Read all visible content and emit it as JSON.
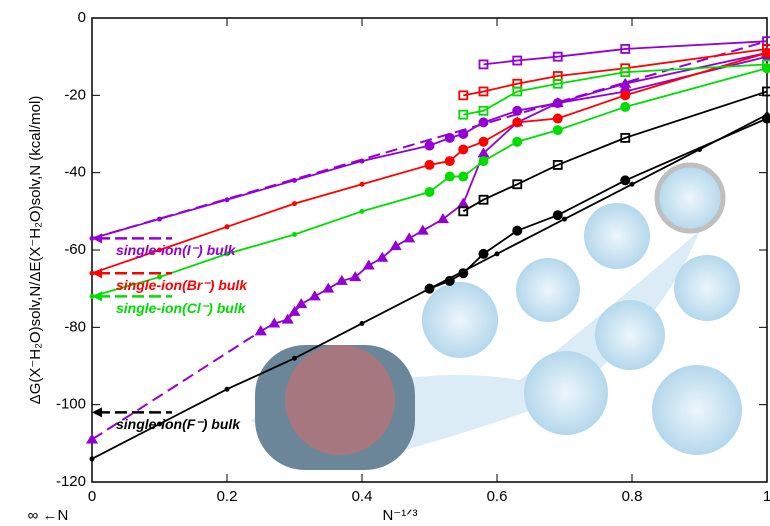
{
  "chart_data": {
    "type": "line",
    "xlabel": "N⁻¹ᐟ³",
    "ylabel": "ΔG(X⁻H₂O)solv,N/ΔE(X⁻H₂O)solv,N  (kcal/mol)",
    "x_note": "∞ ←N",
    "xlim": [
      0,
      1
    ],
    "ylim": [
      -120,
      0
    ],
    "xticks": [
      0,
      0.2,
      0.4,
      0.6,
      0.8,
      1
    ],
    "yticks": [
      -120,
      -100,
      -80,
      -60,
      -40,
      -20,
      0
    ],
    "series": [
      {
        "color": "#9400d3",
        "marker": "none",
        "dash": true,
        "x": [
          0,
          1
        ],
        "values": [
          -57,
          -6
        ]
      },
      {
        "color": "#9400d3",
        "marker": "square",
        "dash": false,
        "x": [
          0.58,
          0.63,
          0.69,
          0.79,
          1
        ],
        "values": [
          -12,
          -11,
          -10,
          -8,
          -6
        ]
      },
      {
        "color": "#9400d3",
        "marker": "circle",
        "dash": false,
        "x": [
          0.5,
          0.53,
          0.55,
          0.58,
          0.63,
          0.69,
          0.79,
          1
        ],
        "values": [
          -33,
          -31,
          -30,
          -27,
          -24,
          -22,
          -19,
          -10
        ]
      },
      {
        "color": "#9400d3",
        "marker": "dot",
        "dash": false,
        "x": [
          0,
          0.1,
          0.2,
          0.3,
          0.4,
          0.5
        ],
        "values": [
          -57,
          -52,
          -47,
          -42,
          -37,
          -33
        ]
      },
      {
        "color": "#9400d3",
        "marker": "triangle",
        "dash": false,
        "x": [
          0.25,
          0.27,
          0.29,
          0.3,
          0.31,
          0.33,
          0.35,
          0.37,
          0.39,
          0.41,
          0.43,
          0.45,
          0.47,
          0.49,
          0.52,
          0.55,
          0.58,
          0.63,
          0.69,
          0.79,
          1
        ],
        "values": [
          -81,
          -79,
          -78,
          -76,
          -74,
          -72,
          -70,
          -68,
          -67,
          -64,
          -62,
          -59,
          -57,
          -55,
          -52,
          -48,
          -35,
          -27,
          -22,
          -17,
          -9
        ]
      },
      {
        "color": "#9400d3",
        "marker": "triangle",
        "dash": true,
        "x": [
          0,
          0.25
        ],
        "values": [
          -109,
          -81
        ]
      },
      {
        "color": "#ff0000",
        "marker": "square",
        "dash": false,
        "x": [
          0.55,
          0.58,
          0.63,
          0.69,
          0.79,
          1
        ],
        "values": [
          -20,
          -19,
          -17,
          -15,
          -13,
          -8
        ]
      },
      {
        "color": "#ff0000",
        "marker": "circle",
        "dash": false,
        "x": [
          0.5,
          0.53,
          0.55,
          0.58,
          0.63,
          0.69,
          0.79,
          1
        ],
        "values": [
          -38,
          -37,
          -34,
          -32,
          -27,
          -26,
          -20,
          -9
        ]
      },
      {
        "color": "#ff0000",
        "marker": "dot",
        "dash": false,
        "x": [
          0,
          0.1,
          0.2,
          0.3,
          0.4,
          0.5
        ],
        "values": [
          -66,
          -60,
          -54,
          -48,
          -43,
          -38
        ]
      },
      {
        "color": "#00dd00",
        "marker": "square",
        "dash": false,
        "x": [
          0.55,
          0.58,
          0.63,
          0.69,
          0.79,
          1
        ],
        "values": [
          -25,
          -24,
          -19,
          -17,
          -14,
          -12
        ]
      },
      {
        "color": "#00dd00",
        "marker": "circle",
        "dash": false,
        "x": [
          0.5,
          0.53,
          0.55,
          0.58,
          0.63,
          0.69,
          0.79,
          1
        ],
        "values": [
          -45,
          -41,
          -41,
          -37,
          -32,
          -29,
          -23,
          -13
        ]
      },
      {
        "color": "#00dd00",
        "marker": "dot",
        "dash": false,
        "x": [
          0,
          0.1,
          0.2,
          0.3,
          0.4,
          0.5
        ],
        "values": [
          -72,
          -67,
          -61,
          -56,
          -50,
          -45
        ]
      },
      {
        "color": "#000000",
        "marker": "square",
        "dash": false,
        "x": [
          0.55,
          0.58,
          0.63,
          0.69,
          0.79,
          1
        ],
        "values": [
          -50,
          -47,
          -43,
          -38,
          -31,
          -19
        ]
      },
      {
        "color": "#000000",
        "marker": "circle",
        "dash": false,
        "x": [
          0.5,
          0.53,
          0.55,
          0.58,
          0.63,
          0.69,
          0.79,
          1
        ],
        "values": [
          -70,
          -68,
          -66,
          -61,
          -55,
          -51,
          -42,
          -26
        ]
      },
      {
        "color": "#000000",
        "marker": "dot",
        "dash": false,
        "x": [
          0,
          0.1,
          0.2,
          0.3,
          0.4,
          0.5,
          0.6,
          0.7,
          0.8,
          0.9,
          1
        ],
        "values": [
          -114,
          -105,
          -96,
          -88,
          -79,
          -70,
          -61,
          -52,
          -43,
          -34,
          -25
        ]
      }
    ],
    "annotations": [
      {
        "text": "single-ion(I⁻) bulk",
        "value": -57,
        "color": "#9400d3"
      },
      {
        "text": "single-ion(Br⁻) bulk",
        "value": -66,
        "color": "#ff0000"
      },
      {
        "text": "single-ion(Cl⁻) bulk",
        "value": -72,
        "color": "#00dd00"
      },
      {
        "text": "single-ion(F⁻) bulk",
        "value": -102,
        "color": "#000000"
      }
    ]
  }
}
